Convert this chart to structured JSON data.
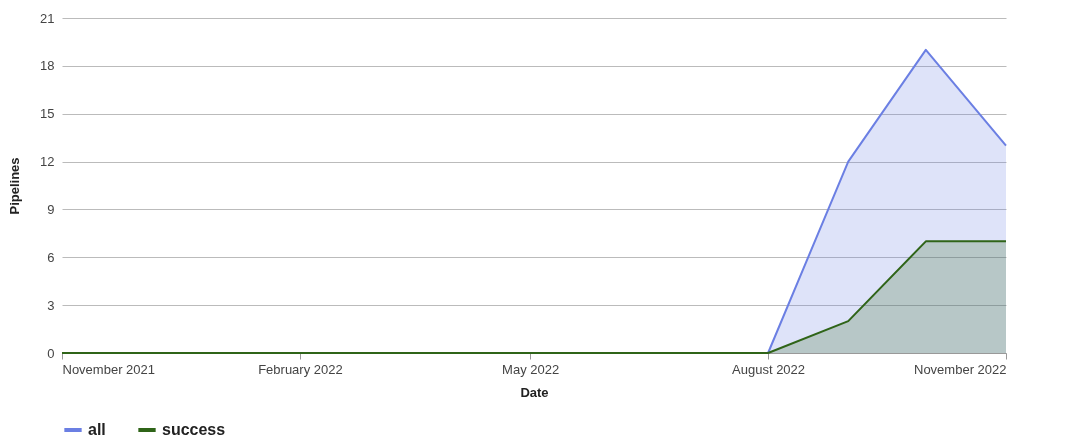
{
  "chart_data": {
    "type": "area",
    "xlabel": "Date",
    "ylabel": "Pipelines",
    "x": [
      "2021-11",
      "2021-12",
      "2022-01",
      "2022-02",
      "2022-03",
      "2022-04",
      "2022-05",
      "2022-06",
      "2022-07",
      "2022-08",
      "2022-09",
      "2022-10",
      "2022-11"
    ],
    "series": [
      {
        "name": "all",
        "color": "#6b7fe3",
        "values": [
          0,
          0,
          0,
          0,
          0,
          0,
          0,
          0,
          0,
          0,
          12,
          19,
          13
        ]
      },
      {
        "name": "success",
        "color": "#2f6418",
        "values": [
          0,
          0,
          0,
          0,
          0,
          0,
          0,
          0,
          0,
          0,
          2,
          7,
          7
        ]
      }
    ],
    "xlim": [
      "2021-11",
      "2022-11"
    ],
    "xticks": [
      {
        "value": "2021-11",
        "label": "November 2021"
      },
      {
        "value": "2022-02",
        "label": "February 2022"
      },
      {
        "value": "2022-05",
        "label": "May 2022"
      },
      {
        "value": "2022-08",
        "label": "August 2022"
      },
      {
        "value": "2022-11",
        "label": "November 2022"
      }
    ],
    "ylim": [
      0,
      21
    ],
    "yticks": [
      0,
      3,
      6,
      9,
      12,
      15,
      18,
      21
    ],
    "grid": "y",
    "legend": "bottom left"
  }
}
